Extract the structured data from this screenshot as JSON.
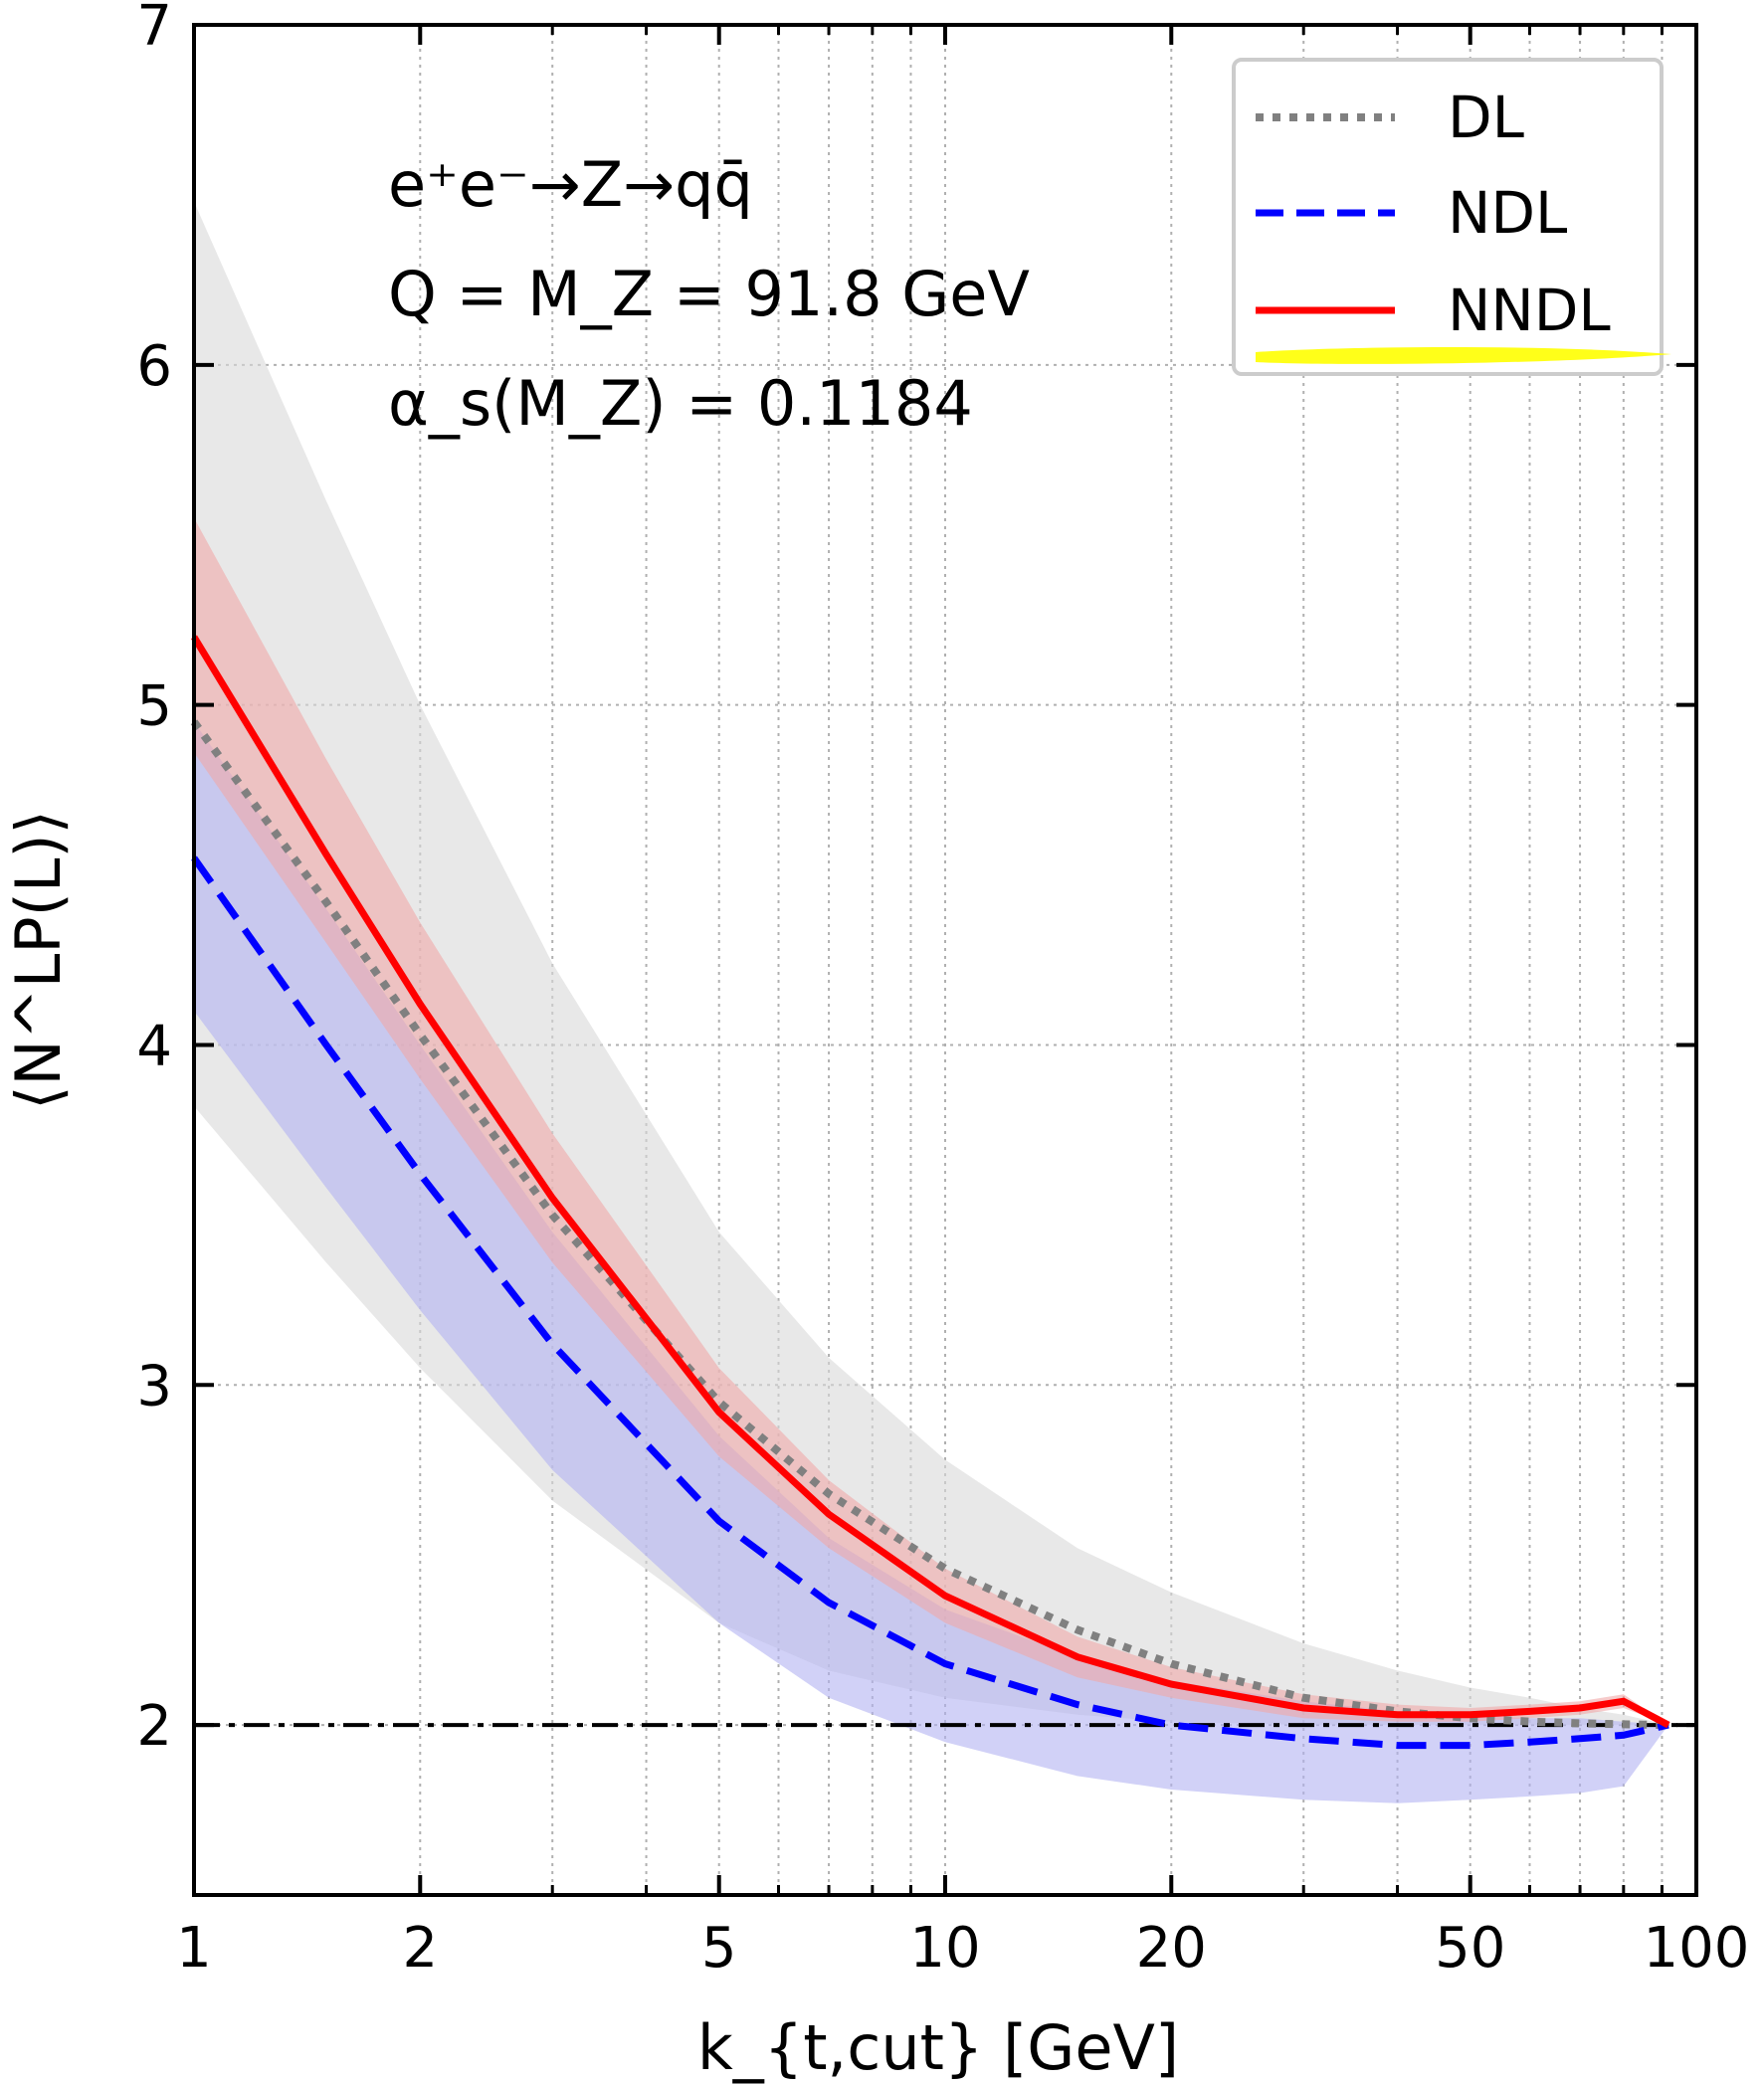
{
  "chart_data": {
    "type": "line",
    "x_scale": "log",
    "xlim": [
      1,
      100
    ],
    "ylim": [
      1.5,
      7
    ],
    "grid": true,
    "legend_placement": "top-right",
    "xticks": [
      "1",
      "2",
      "5",
      "10",
      "20",
      "50",
      "100"
    ],
    "yticks": [
      "2",
      "3",
      "4",
      "5",
      "6",
      "7"
    ],
    "xlabel": "k_{t,cut} [GeV]",
    "ylabel": "⟨N^LP(L)⟩",
    "annotations": [
      "e⁺e⁻→Z→qq̄",
      "Q = M_Z = 91.8 GeV",
      "α_s(M_Z) = 0.1184"
    ],
    "reference_line": {
      "y": 2
    },
    "x": [
      1,
      1.5,
      2,
      3,
      5,
      7,
      10,
      15,
      20,
      30,
      40,
      50,
      60,
      70,
      80,
      91.8
    ],
    "series": [
      {
        "name": "DL",
        "color": "#808080",
        "style": "dotted",
        "values": [
          4.95,
          4.42,
          4.03,
          3.5,
          2.95,
          2.68,
          2.46,
          2.28,
          2.18,
          2.08,
          2.04,
          2.02,
          2.01,
          2.005,
          2.002,
          2.0
        ],
        "band_low": [
          3.82,
          3.36,
          3.05,
          2.66,
          2.3,
          2.16,
          2.08,
          2.03,
          2.01,
          2.0,
          2.0,
          2.0,
          2.0,
          2.0,
          2.0,
          2.0
        ],
        "band_high": [
          6.48,
          5.6,
          5.0,
          4.24,
          3.45,
          3.08,
          2.78,
          2.52,
          2.39,
          2.24,
          2.16,
          2.11,
          2.08,
          2.05,
          2.03,
          2.0
        ],
        "band_color": "#d9d9d9"
      },
      {
        "name": "NDL",
        "color": "#0000ff",
        "style": "dashed",
        "values": [
          4.55,
          4.0,
          3.62,
          3.12,
          2.6,
          2.36,
          2.18,
          2.06,
          2.0,
          1.96,
          1.94,
          1.94,
          1.95,
          1.96,
          1.97,
          2.0
        ],
        "band_low": [
          4.1,
          3.58,
          3.22,
          2.75,
          2.3,
          2.08,
          1.95,
          1.85,
          1.81,
          1.78,
          1.77,
          1.78,
          1.79,
          1.8,
          1.82,
          2.0
        ],
        "band_high": [
          4.95,
          4.4,
          4.0,
          3.45,
          2.85,
          2.55,
          2.34,
          2.2,
          2.13,
          2.07,
          2.04,
          2.03,
          2.02,
          2.02,
          2.01,
          2.0
        ],
        "band_color": "#b3b3f2"
      },
      {
        "name": "NNDL",
        "color": "#ff0000",
        "style": "solid",
        "values": [
          5.2,
          4.56,
          4.12,
          3.55,
          2.92,
          2.62,
          2.38,
          2.2,
          2.12,
          2.05,
          2.03,
          2.03,
          2.04,
          2.05,
          2.07,
          2.0
        ],
        "band_low": [
          4.86,
          4.3,
          3.9,
          3.36,
          2.79,
          2.52,
          2.3,
          2.14,
          2.08,
          2.02,
          2.01,
          2.01,
          2.02,
          2.03,
          2.05,
          2.0
        ],
        "band_high": [
          5.55,
          4.84,
          4.36,
          3.74,
          3.05,
          2.72,
          2.46,
          2.26,
          2.17,
          2.09,
          2.06,
          2.05,
          2.06,
          2.07,
          2.09,
          2.0
        ],
        "band_color": "#f0a8a8"
      }
    ]
  }
}
